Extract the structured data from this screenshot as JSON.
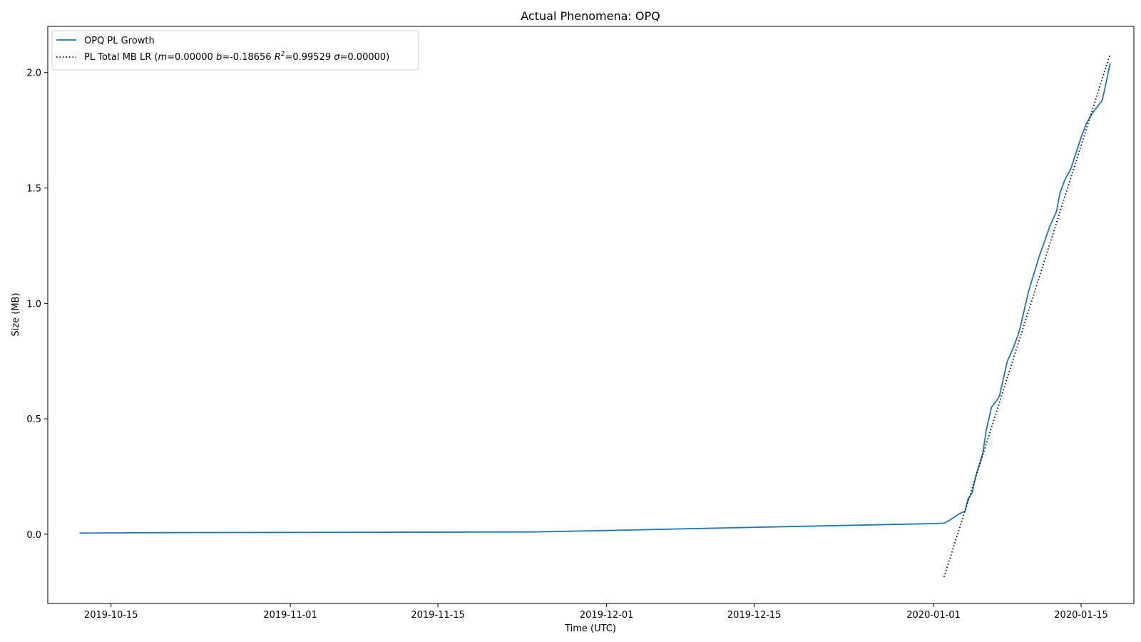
{
  "chart_data": {
    "type": "line",
    "title": "Actual Phenomena: OPQ",
    "xlabel": "Time (UTC)",
    "ylabel": "Size (MB)",
    "x_type": "date",
    "xlim": [
      "2019-10-09",
      "2020-01-20"
    ],
    "ylim": [
      -0.3,
      2.2
    ],
    "x_ticks": [
      "2019-10-15",
      "2019-11-01",
      "2019-11-15",
      "2019-12-01",
      "2019-12-15",
      "2020-01-01",
      "2020-01-15"
    ],
    "y_ticks": [
      0.0,
      0.5,
      1.0,
      1.5,
      2.0
    ],
    "y_tick_labels": [
      "0.0",
      "0.5",
      "1.0",
      "1.5",
      "2.0"
    ],
    "grid": false,
    "legend_position": "top-left",
    "series": [
      {
        "name": "OPQ PL Growth",
        "style": "solid",
        "color": "#1f77b4",
        "points": [
          [
            "2019-10-12",
            0.005
          ],
          [
            "2019-10-20",
            0.007
          ],
          [
            "2019-11-05",
            0.008
          ],
          [
            "2019-11-24",
            0.01
          ],
          [
            "2019-12-01",
            0.016
          ],
          [
            "2019-12-15",
            0.03
          ],
          [
            "2020-01-01",
            0.046
          ],
          [
            "2020-01-02",
            0.048
          ],
          [
            "2020-01-02T12:00",
            0.06
          ],
          [
            "2020-01-03T12:00",
            0.09
          ],
          [
            "2020-01-04",
            0.1
          ],
          [
            "2020-01-04T06:00",
            0.15
          ],
          [
            "2020-01-04T16:00",
            0.18
          ],
          [
            "2020-01-05",
            0.25
          ],
          [
            "2020-01-05T16:00",
            0.35
          ],
          [
            "2020-01-06",
            0.45
          ],
          [
            "2020-01-06T12:00",
            0.55
          ],
          [
            "2020-01-07",
            0.58
          ],
          [
            "2020-01-07T06:00",
            0.6
          ],
          [
            "2020-01-08",
            0.75
          ],
          [
            "2020-01-08T12:00",
            0.8
          ],
          [
            "2020-01-09",
            0.86
          ],
          [
            "2020-01-09T06:00",
            0.9
          ],
          [
            "2020-01-10",
            1.05
          ],
          [
            "2020-01-11",
            1.2
          ],
          [
            "2020-01-12",
            1.33
          ],
          [
            "2020-01-12T16:00",
            1.4
          ],
          [
            "2020-01-13",
            1.48
          ],
          [
            "2020-01-13T12:00",
            1.54
          ],
          [
            "2020-01-14",
            1.58
          ],
          [
            "2020-01-14T12:00",
            1.65
          ],
          [
            "2020-01-15",
            1.72
          ],
          [
            "2020-01-15T12:00",
            1.78
          ],
          [
            "2020-01-16",
            1.82
          ],
          [
            "2020-01-16T12:00",
            1.85
          ],
          [
            "2020-01-17",
            1.88
          ],
          [
            "2020-01-17T06:00",
            1.93
          ],
          [
            "2020-01-17T18:00",
            2.04
          ]
        ]
      },
      {
        "name": "PL Total MB LR",
        "name_params": [
          {
            "sym": "m",
            "val": "0.00000"
          },
          {
            "sym": "b",
            "val": "-0.18656"
          },
          {
            "sym": "R",
            "sup": "2",
            "val": "0.99529"
          },
          {
            "sym": "σ",
            "val": "0.00000"
          }
        ],
        "style": "dotted",
        "color": "#000000",
        "points": [
          [
            "2020-01-02",
            -0.185
          ],
          [
            "2020-01-17T18:00",
            2.08
          ]
        ]
      }
    ]
  }
}
